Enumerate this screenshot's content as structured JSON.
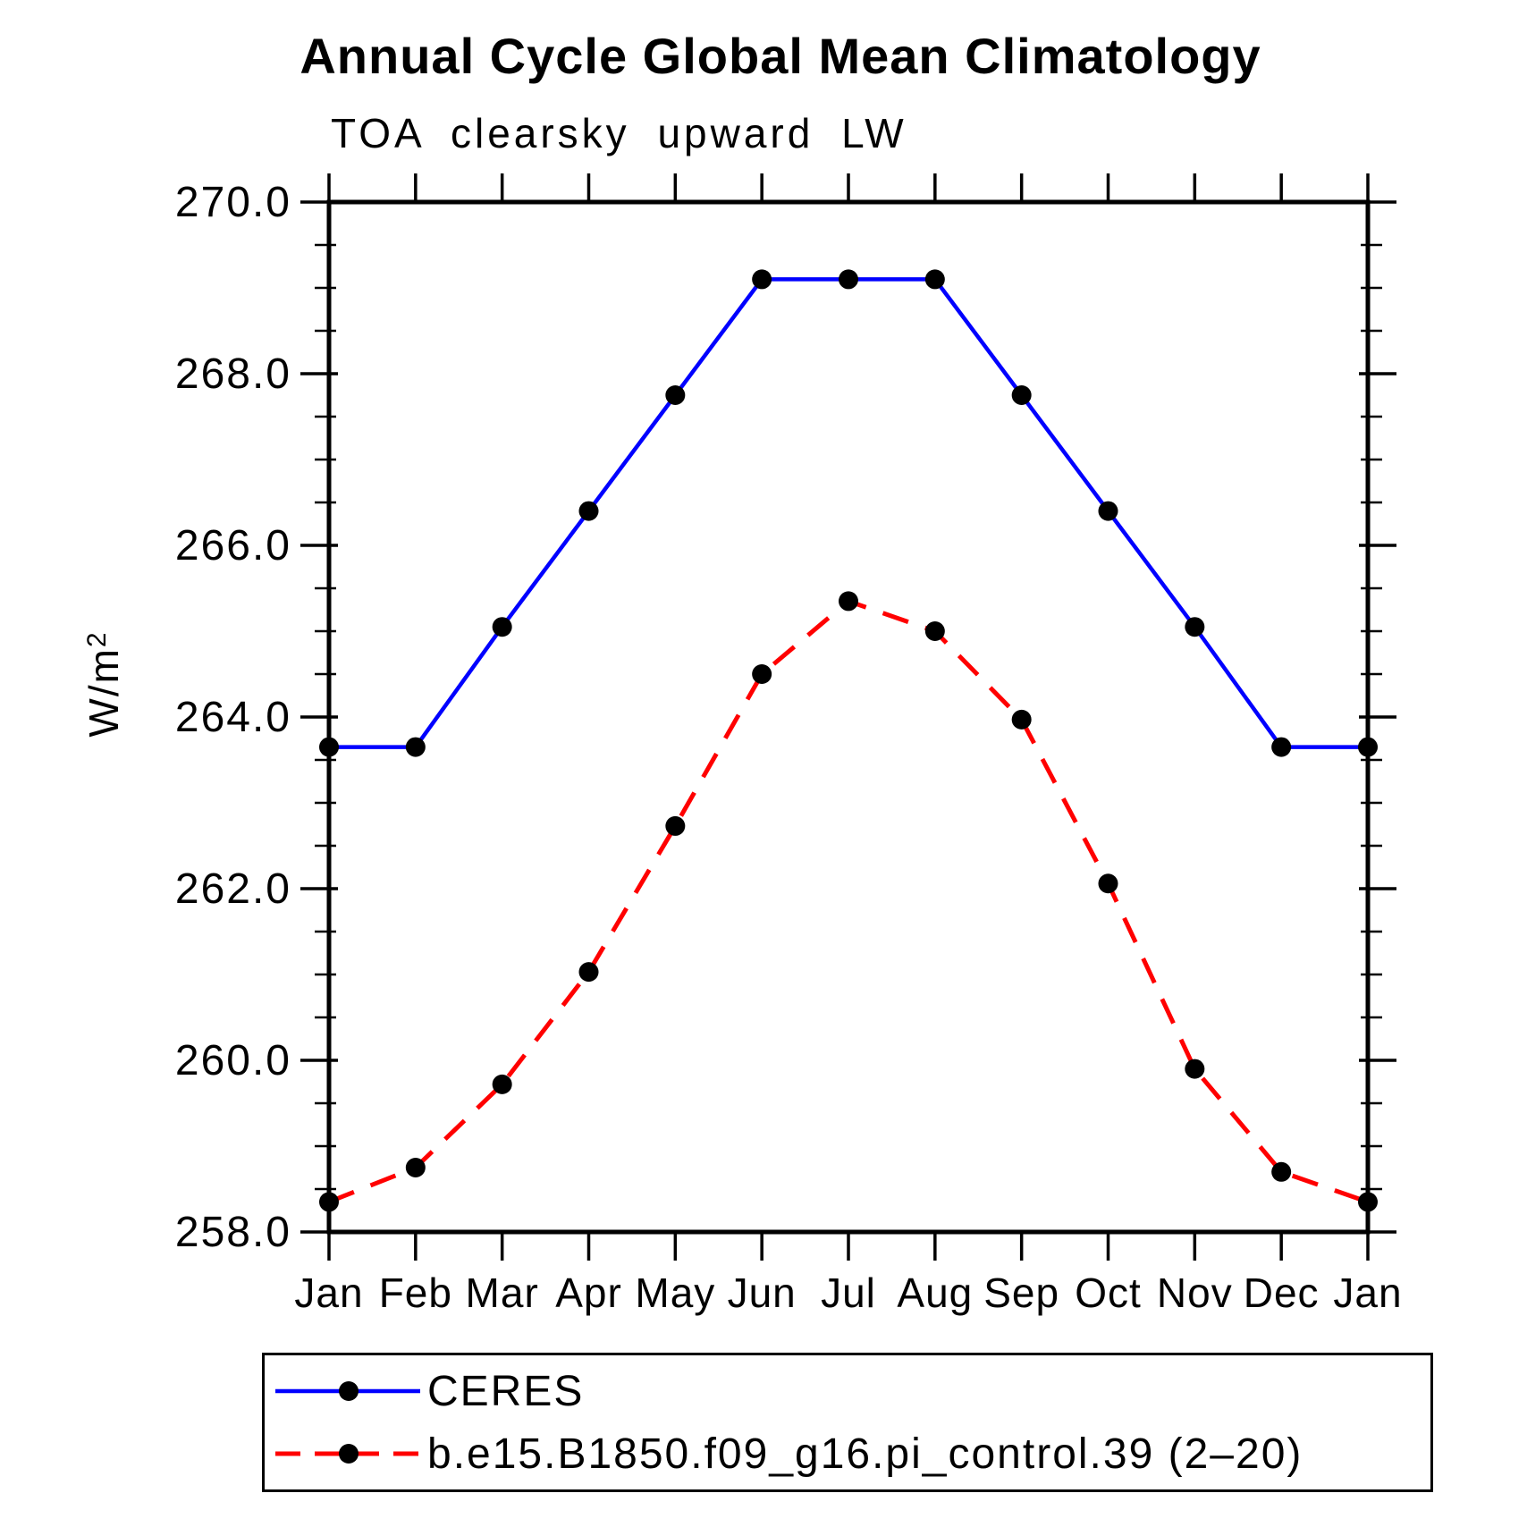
{
  "header": {
    "title": "Annual Cycle Global Mean Climatology",
    "subtitle": "TOA clearsky upward LW"
  },
  "axes": {
    "ylabel_base": "W/m",
    "ylabel_exp": "2",
    "y_tick_labels": [
      "270.0",
      "268.0",
      "266.0",
      "264.0",
      "262.0",
      "260.0",
      "258.0"
    ],
    "x_tick_labels": [
      "Jan",
      "Feb",
      "Mar",
      "Apr",
      "May",
      "Jun",
      "Jul",
      "Aug",
      "Sep",
      "Oct",
      "Nov",
      "Dec",
      "Jan"
    ]
  },
  "colors": {
    "ceres_line": "#0000ff",
    "model_line": "#ff0000",
    "marker": "#000000",
    "axis": "#000000"
  },
  "chart_data": {
    "type": "line",
    "title": "Annual Cycle Global Mean Climatology",
    "subtitle": "TOA clearsky upward LW",
    "xlabel": "",
    "ylabel": "W/m²",
    "categories": [
      "Jan",
      "Feb",
      "Mar",
      "Apr",
      "May",
      "Jun",
      "Jul",
      "Aug",
      "Sep",
      "Oct",
      "Nov",
      "Dec",
      "Jan"
    ],
    "ylim": [
      258.0,
      270.0
    ],
    "y_major_step": 2.0,
    "y_minor_step": 0.5,
    "grid": false,
    "legend_position": "bottom",
    "series": [
      {
        "name": "CERES",
        "color": "#0000ff",
        "line_style": "solid",
        "marker": "circle",
        "marker_color": "#000000",
        "values": [
          263.65,
          263.65,
          265.05,
          266.4,
          267.75,
          269.1,
          269.1,
          269.1,
          267.75,
          266.4,
          265.05,
          263.65,
          263.65
        ]
      },
      {
        "name": "b.e15.B1850.f09_g16.pi_control.39 (2–20)",
        "color": "#ff0000",
        "line_style": "dashed",
        "marker": "circle",
        "marker_color": "#000000",
        "values": [
          258.35,
          258.75,
          259.72,
          261.03,
          262.73,
          264.5,
          265.35,
          265.0,
          263.97,
          262.06,
          259.9,
          258.7,
          258.35
        ]
      }
    ]
  }
}
